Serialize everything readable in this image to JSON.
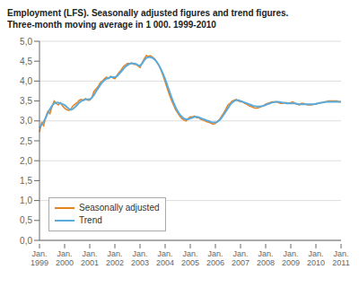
{
  "chart_data": {
    "type": "line",
    "title": "Employment (LFS). Seasonally adjusted figures and trend figures.",
    "subtitle": "Three-month moving average in 1 000. 1999-2010",
    "categories": [
      "Jan.\n1999",
      null,
      null,
      null,
      null,
      null,
      null,
      null,
      null,
      null,
      null,
      null,
      "Jan.\n2000",
      null,
      null,
      null,
      null,
      null,
      null,
      null,
      null,
      null,
      null,
      null,
      "Jan.\n2001",
      null,
      null,
      null,
      null,
      null,
      null,
      null,
      null,
      null,
      null,
      null,
      "Jan.\n2002",
      null,
      null,
      null,
      null,
      null,
      null,
      null,
      null,
      null,
      null,
      null,
      "Jan.\n2003",
      null,
      null,
      null,
      null,
      null,
      null,
      null,
      null,
      null,
      null,
      null,
      "Jan.\n2004",
      null,
      null,
      null,
      null,
      null,
      null,
      null,
      null,
      null,
      null,
      null,
      "Jan.\n2005",
      null,
      null,
      null,
      null,
      null,
      null,
      null,
      null,
      null,
      null,
      null,
      "Jan.\n2006",
      null,
      null,
      null,
      null,
      null,
      null,
      null,
      null,
      null,
      null,
      null,
      "Jan.\n2007",
      null,
      null,
      null,
      null,
      null,
      null,
      null,
      null,
      null,
      null,
      null,
      "Jan.\n2008",
      null,
      null,
      null,
      null,
      null,
      null,
      null,
      null,
      null,
      null,
      null,
      "Jan.\n2009",
      null,
      null,
      null,
      null,
      null,
      null,
      null,
      null,
      null,
      null,
      null,
      "Jan.\n2010",
      null,
      null,
      null,
      null,
      null,
      null,
      null,
      null,
      null,
      null,
      null,
      "Jan.\n2011"
    ],
    "series": [
      {
        "name": "Seasonally adjusted",
        "color": "#e8821e",
        "values": [
          2.72,
          2.96,
          2.88,
          3.1,
          3.24,
          3.18,
          3.36,
          3.5,
          3.44,
          3.4,
          3.46,
          3.38,
          3.32,
          3.28,
          3.26,
          3.3,
          3.38,
          3.42,
          3.46,
          3.52,
          3.54,
          3.52,
          3.56,
          3.52,
          3.52,
          3.58,
          3.74,
          3.8,
          3.86,
          3.96,
          4.0,
          4.06,
          4.1,
          4.06,
          4.12,
          4.08,
          4.06,
          4.14,
          4.22,
          4.28,
          4.36,
          4.4,
          4.44,
          4.44,
          4.46,
          4.42,
          4.42,
          4.38,
          4.34,
          4.46,
          4.56,
          4.64,
          4.62,
          4.64,
          4.6,
          4.56,
          4.48,
          4.4,
          4.28,
          4.14,
          3.98,
          3.82,
          3.66,
          3.52,
          3.4,
          3.28,
          3.2,
          3.12,
          3.06,
          3.02,
          3.0,
          3.06,
          3.1,
          3.1,
          3.12,
          3.08,
          3.08,
          3.04,
          3.02,
          3.0,
          2.98,
          2.96,
          2.94,
          2.92,
          2.94,
          2.98,
          3.04,
          3.12,
          3.2,
          3.3,
          3.4,
          3.44,
          3.5,
          3.52,
          3.54,
          3.5,
          3.48,
          3.48,
          3.44,
          3.42,
          3.38,
          3.36,
          3.34,
          3.32,
          3.32,
          3.34,
          3.36,
          3.38,
          3.42,
          3.44,
          3.46,
          3.48,
          3.48,
          3.48,
          3.46,
          3.44,
          3.44,
          3.46,
          3.46,
          3.44,
          3.46,
          3.48,
          3.44,
          3.42,
          3.4,
          3.44,
          3.44,
          3.42,
          3.4,
          3.4,
          3.4,
          3.42,
          3.42,
          3.44,
          3.46,
          3.46,
          3.48,
          3.48,
          3.5,
          3.5,
          3.5,
          3.5,
          3.5,
          3.48,
          3.48
        ]
      },
      {
        "name": "Trend",
        "color": "#5aabdc",
        "values": [
          2.82,
          2.9,
          2.98,
          3.08,
          3.2,
          3.3,
          3.38,
          3.44,
          3.46,
          3.46,
          3.44,
          3.42,
          3.4,
          3.35,
          3.3,
          3.28,
          3.3,
          3.35,
          3.4,
          3.46,
          3.5,
          3.52,
          3.54,
          3.54,
          3.54,
          3.58,
          3.65,
          3.74,
          3.82,
          3.9,
          3.97,
          4.02,
          4.06,
          4.08,
          4.1,
          4.1,
          4.1,
          4.12,
          4.18,
          4.24,
          4.3,
          4.36,
          4.4,
          4.43,
          4.44,
          4.44,
          4.43,
          4.4,
          4.38,
          4.44,
          4.52,
          4.58,
          4.6,
          4.6,
          4.58,
          4.54,
          4.48,
          4.4,
          4.3,
          4.18,
          4.05,
          3.9,
          3.75,
          3.6,
          3.46,
          3.34,
          3.24,
          3.16,
          3.1,
          3.06,
          3.04,
          3.04,
          3.06,
          3.08,
          3.1,
          3.1,
          3.09,
          3.07,
          3.05,
          3.03,
          3.01,
          2.99,
          2.97,
          2.96,
          2.96,
          2.98,
          3.02,
          3.08,
          3.16,
          3.24,
          3.32,
          3.4,
          3.46,
          3.5,
          3.52,
          3.52,
          3.5,
          3.48,
          3.46,
          3.44,
          3.42,
          3.4,
          3.38,
          3.37,
          3.36,
          3.36,
          3.37,
          3.38,
          3.4,
          3.42,
          3.44,
          3.46,
          3.47,
          3.48,
          3.48,
          3.47,
          3.46,
          3.45,
          3.44,
          3.44,
          3.44,
          3.44,
          3.44,
          3.43,
          3.42,
          3.42,
          3.42,
          3.42,
          3.42,
          3.42,
          3.42,
          3.42,
          3.43,
          3.44,
          3.45,
          3.46,
          3.47,
          3.48,
          3.48,
          3.48,
          3.48,
          3.48,
          3.48,
          3.48,
          3.48
        ]
      }
    ],
    "ylim": [
      0.0,
      5.0
    ],
    "yticks": [
      {
        "value": 0.0,
        "label": "0,0"
      },
      {
        "value": 0.5,
        "label": "0,5"
      },
      {
        "value": 1.0,
        "label": "1,0"
      },
      {
        "value": 1.5,
        "label": "1,5"
      },
      {
        "value": 2.0,
        "label": "2,0"
      },
      {
        "value": 2.5,
        "label": "2,5"
      },
      {
        "value": 3.0,
        "label": "3,0"
      },
      {
        "value": 3.5,
        "label": "3,5"
      },
      {
        "value": 4.0,
        "label": "4,0"
      },
      {
        "value": 4.5,
        "label": "4,5"
      },
      {
        "value": 5.0,
        "label": "5,0"
      }
    ],
    "grid": true,
    "legend": "lower left"
  }
}
